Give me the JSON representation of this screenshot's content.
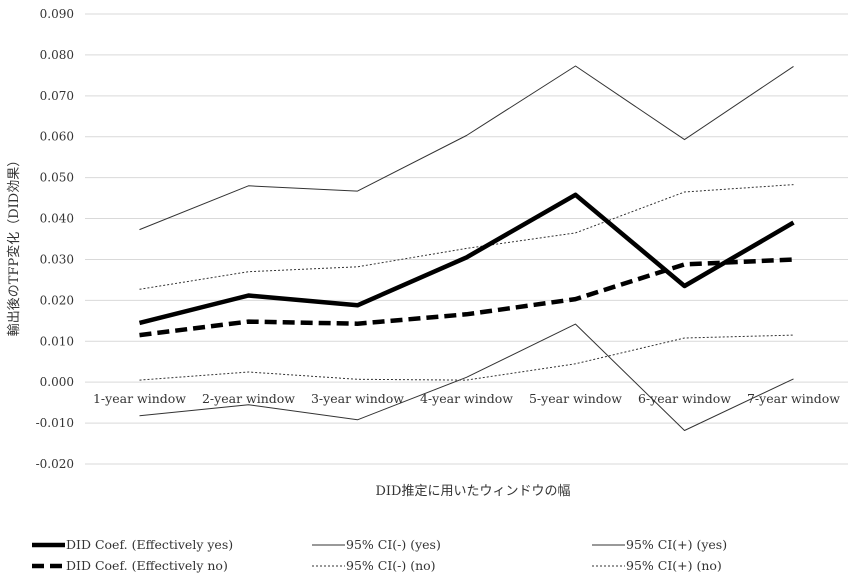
{
  "chart_data": {
    "type": "line",
    "title": "",
    "xlabel": "DID推定に用いたウィンドウの幅",
    "ylabel": "輸出後のTFP変化（DID効果）",
    "ylim": [
      -0.02,
      0.09
    ],
    "yticks": [
      -0.02,
      -0.01,
      0.0,
      0.01,
      0.02,
      0.03,
      0.04,
      0.05,
      0.06,
      0.07,
      0.08,
      0.09
    ],
    "ytick_labels": [
      "-0.020",
      "-0.010",
      "0.000",
      "0.010",
      "0.020",
      "0.030",
      "0.040",
      "0.050",
      "0.060",
      "0.070",
      "0.080",
      "0.090"
    ],
    "grid": true,
    "legend_position": "bottom",
    "categories": [
      "1-year window",
      "2-year window",
      "3-year window",
      "4-year window",
      "5-year window",
      "6-year window",
      "7-year window"
    ],
    "series": [
      {
        "name": "DID Coef. (Effectively yes)",
        "style": "thick-solid",
        "color": "#000000",
        "values": [
          0.0145,
          0.0212,
          0.0188,
          0.0305,
          0.0458,
          0.0235,
          0.039
        ]
      },
      {
        "name": "95% CI(-) (yes)",
        "style": "thin-solid",
        "color": "#333333",
        "values": [
          -0.0082,
          -0.0055,
          -0.0092,
          0.0012,
          0.0142,
          -0.0118,
          0.0008
        ]
      },
      {
        "name": "95% CI(+) (yes)",
        "style": "thin-solid",
        "color": "#333333",
        "values": [
          0.0373,
          0.048,
          0.0467,
          0.0603,
          0.0773,
          0.0593,
          0.0772
        ]
      },
      {
        "name": "DID Coef. (Effectively no)",
        "style": "thick-dashed",
        "color": "#000000",
        "values": [
          0.0115,
          0.0148,
          0.0143,
          0.0166,
          0.0203,
          0.0288,
          0.03
        ]
      },
      {
        "name": "95% CI(-) (no)",
        "style": "thin-dotted",
        "color": "#333333",
        "values": [
          0.0005,
          0.0025,
          0.0007,
          0.0005,
          0.0045,
          0.0108,
          0.0115
        ]
      },
      {
        "name": "95% CI(+) (no)",
        "style": "thin-dotted",
        "color": "#333333",
        "values": [
          0.0227,
          0.027,
          0.0282,
          0.0327,
          0.0365,
          0.0465,
          0.0483
        ]
      }
    ]
  }
}
